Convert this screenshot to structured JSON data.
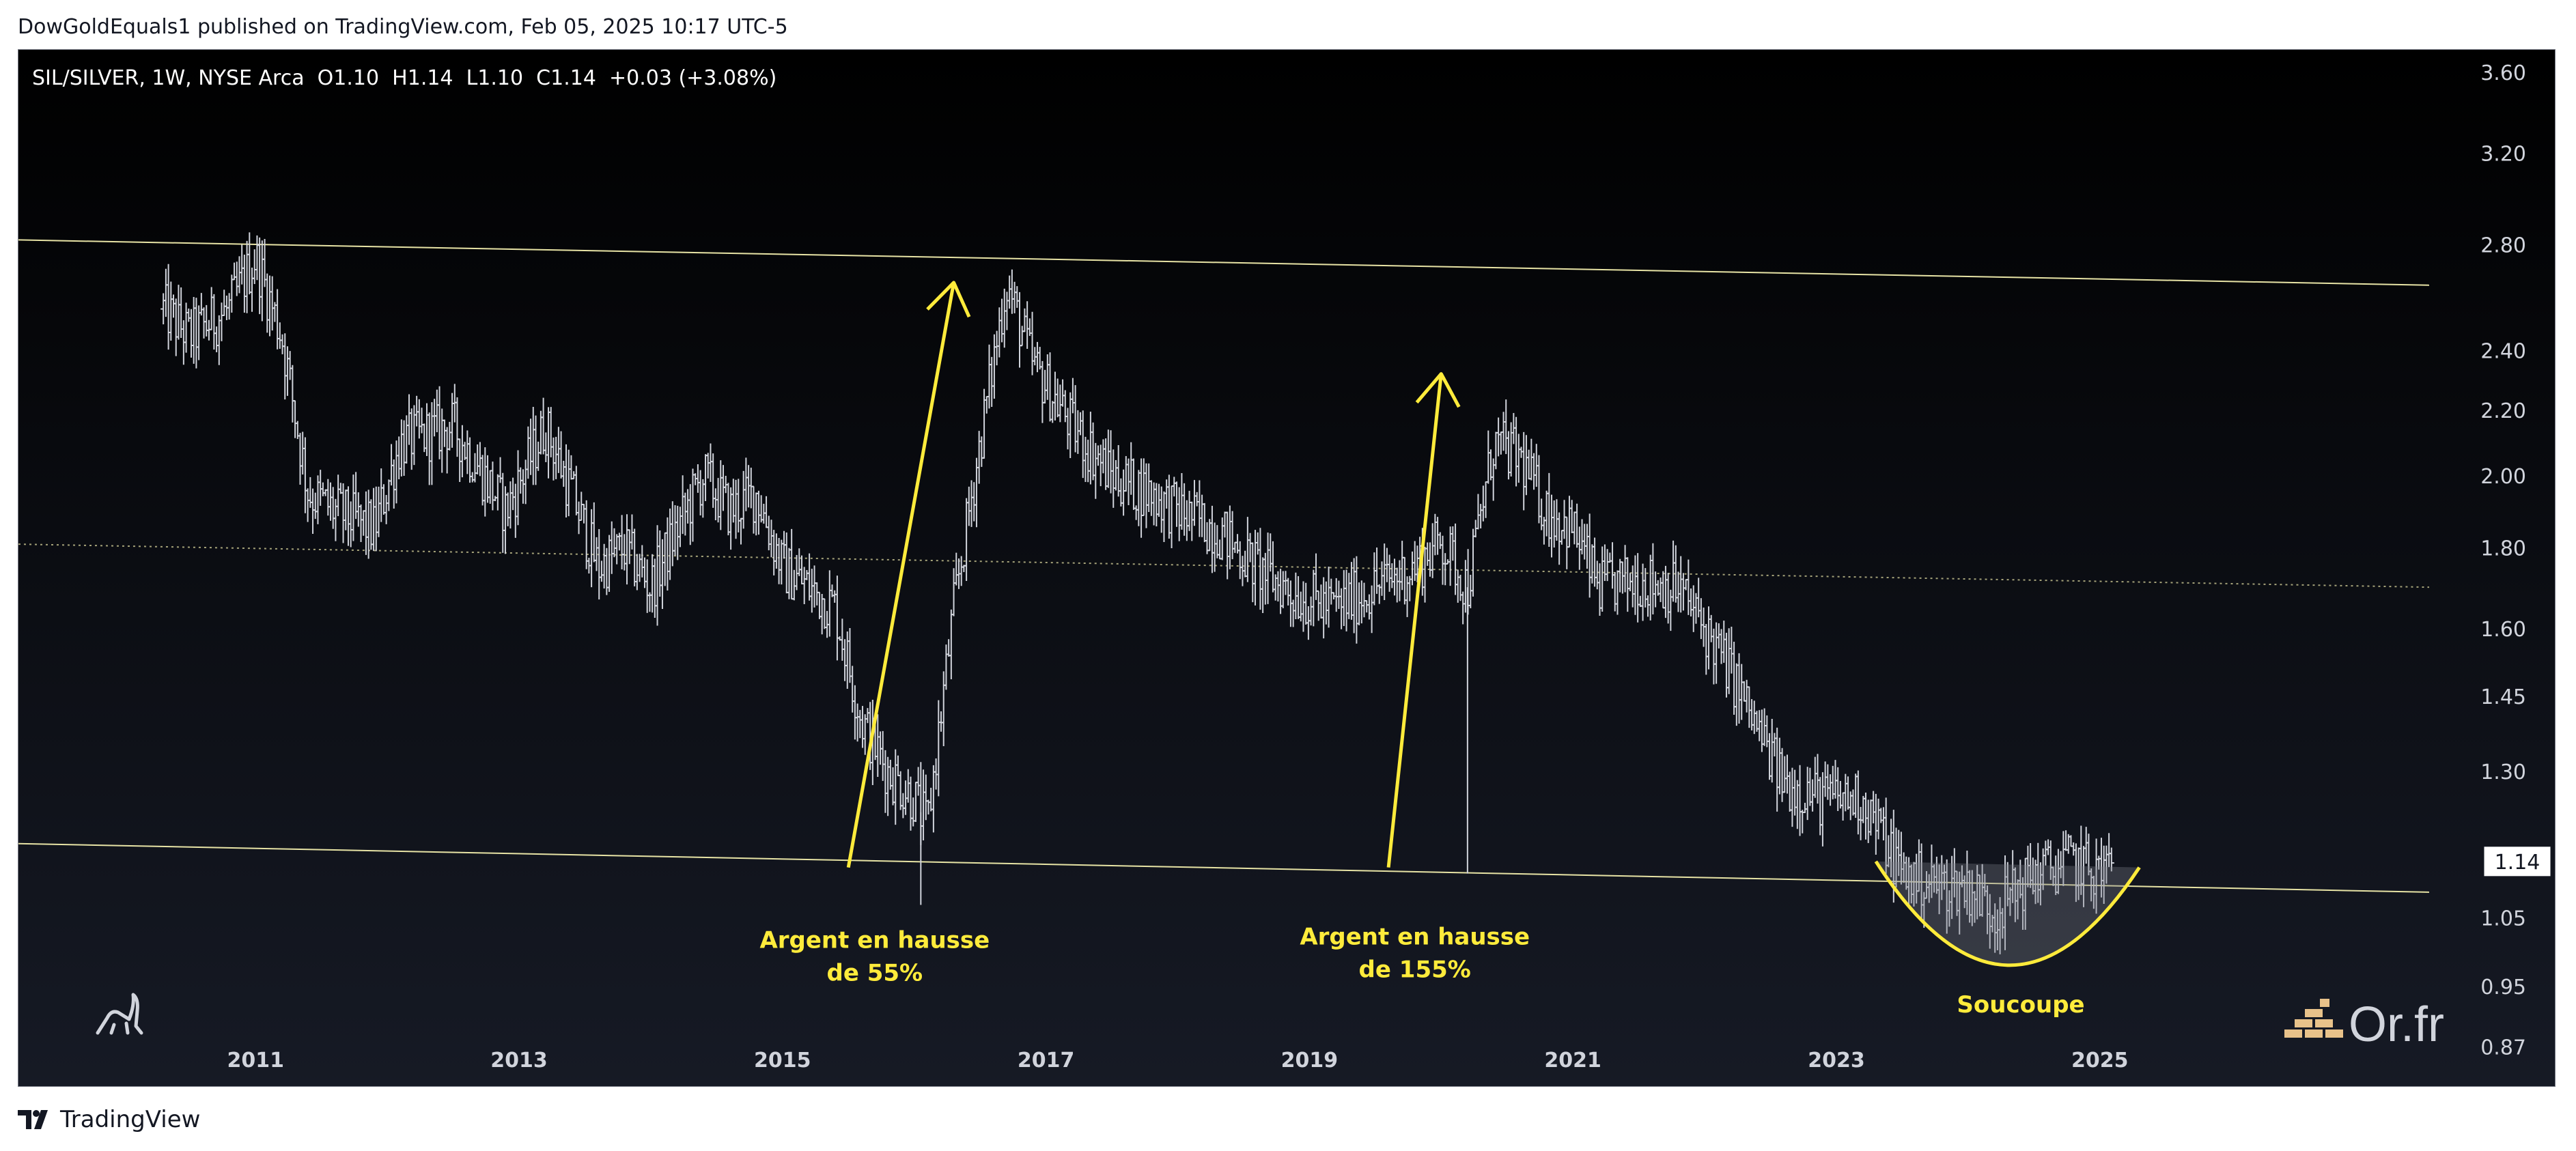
{
  "header": {
    "published_text": "DowGoldEquals1 published on TradingView.com, Feb 05, 2025 10:17 UTC-5"
  },
  "symbol_bar": {
    "text": "SIL/SILVER, 1W, NYSE Arca  O1.10  H1.14  L1.10  C1.14  +0.03 (+3.08%)"
  },
  "footer": {
    "brand": "TradingView"
  },
  "colors": {
    "bg_top": "#000000",
    "bg_bottom": "#161a25",
    "bars": "#d1d4dc",
    "trendline": "#e7e3a5",
    "annotation": "#ffeb3b",
    "axis_text": "#d1d4dc"
  },
  "chart_data": {
    "type": "bar",
    "title": "SIL/SILVER, 1W, NYSE Arca",
    "scale": "log",
    "ylim": [
      0.82,
      3.72
    ],
    "xlim": [
      2009.2,
      2027.5
    ],
    "x_ticks": [
      {
        "x": 2011,
        "label": "2011"
      },
      {
        "x": 2013,
        "label": "2013"
      },
      {
        "x": 2015,
        "label": "2015"
      },
      {
        "x": 2017,
        "label": "2017"
      },
      {
        "x": 2019,
        "label": "2019"
      },
      {
        "x": 2021,
        "label": "2021"
      },
      {
        "x": 2023,
        "label": "2023"
      },
      {
        "x": 2025,
        "label": "2025"
      }
    ],
    "y_ticks": [
      0.87,
      0.95,
      1.05,
      1.3,
      1.45,
      1.6,
      1.8,
      2.0,
      2.2,
      2.4,
      2.8,
      3.2,
      3.6
    ],
    "last_price": {
      "value": 1.14,
      "label": "1.14"
    },
    "ohlc_last": {
      "open": 1.1,
      "high": 1.14,
      "low": 1.1,
      "close": 1.14,
      "change": 0.03,
      "change_pct": 3.08
    },
    "price_path": [
      [
        2010.3,
        2.55
      ],
      [
        2010.5,
        2.45
      ],
      [
        2010.8,
        2.55
      ],
      [
        2011.0,
        2.75
      ],
      [
        2011.2,
        2.45
      ],
      [
        2011.4,
        1.95
      ],
      [
        2011.6,
        1.9
      ],
      [
        2011.9,
        1.85
      ],
      [
        2012.1,
        2.1
      ],
      [
        2012.5,
        2.15
      ],
      [
        2012.9,
        1.9
      ],
      [
        2013.2,
        2.15
      ],
      [
        2013.4,
        1.95
      ],
      [
        2013.6,
        1.75
      ],
      [
        2013.8,
        1.8
      ],
      [
        2014.0,
        1.7
      ],
      [
        2014.2,
        1.85
      ],
      [
        2014.4,
        2.0
      ],
      [
        2014.6,
        1.9
      ],
      [
        2014.8,
        1.95
      ],
      [
        2015.0,
        1.75
      ],
      [
        2015.2,
        1.7
      ],
      [
        2015.4,
        1.65
      ],
      [
        2015.6,
        1.4
      ],
      [
        2015.8,
        1.3
      ],
      [
        2016.0,
        1.25
      ],
      [
        2016.1,
        1.2
      ],
      [
        2016.3,
        1.65
      ],
      [
        2016.5,
        2.1
      ],
      [
        2016.7,
        2.65
      ],
      [
        2016.9,
        2.35
      ],
      [
        2017.2,
        2.15
      ],
      [
        2017.5,
        2.0
      ],
      [
        2017.8,
        1.95
      ],
      [
        2018.0,
        1.9
      ],
      [
        2018.3,
        1.85
      ],
      [
        2018.6,
        1.75
      ],
      [
        2018.9,
        1.68
      ],
      [
        2019.2,
        1.65
      ],
      [
        2019.5,
        1.7
      ],
      [
        2019.8,
        1.75
      ],
      [
        2020.0,
        1.82
      ],
      [
        2020.2,
        1.7
      ],
      [
        2020.4,
        2.1
      ],
      [
        2020.6,
        2.05
      ],
      [
        2020.8,
        1.9
      ],
      [
        2021.0,
        1.85
      ],
      [
        2021.2,
        1.7
      ],
      [
        2021.5,
        1.72
      ],
      [
        2021.8,
        1.7
      ],
      [
        2022.0,
        1.6
      ],
      [
        2022.2,
        1.5
      ],
      [
        2022.4,
        1.38
      ],
      [
        2022.6,
        1.28
      ],
      [
        2022.9,
        1.25
      ],
      [
        2023.2,
        1.25
      ],
      [
        2023.5,
        1.12
      ],
      [
        2023.8,
        1.1
      ],
      [
        2024.0,
        1.1
      ],
      [
        2024.2,
        1.06
      ],
      [
        2024.5,
        1.12
      ],
      [
        2024.8,
        1.14
      ],
      [
        2025.0,
        1.12
      ],
      [
        2025.1,
        1.14
      ]
    ],
    "spikes": [
      {
        "x": 2016.05,
        "low": 1.07
      },
      {
        "x": 2020.2,
        "low": 1.12
      }
    ],
    "trendlines": [
      {
        "points": [
          [
            2009.2,
            2.82
          ],
          [
            2027.5,
            2.64
          ]
        ]
      },
      {
        "points": [
          [
            2009.2,
            1.81
          ],
          [
            2027.5,
            1.7
          ],
          "dotted"
        ]
      },
      {
        "points": [
          [
            2009.2,
            1.17
          ],
          [
            2027.5,
            1.09
          ]
        ]
      }
    ],
    "annotations": [
      {
        "lines": [
          "Argent en hausse",
          "de 55%"
        ],
        "x": 2015.7,
        "y": 1.005
      },
      {
        "lines": [
          "Argent en hausse",
          "de 155%"
        ],
        "x": 2019.8,
        "y": 1.01
      },
      {
        "lines": [
          "Soucoupe"
        ],
        "x": 2024.4,
        "y": 0.915
      }
    ],
    "arrows": [
      {
        "from": [
          2015.5,
          1.13
        ],
        "to": [
          2016.3,
          2.65
        ]
      },
      {
        "from": [
          2019.6,
          1.13
        ],
        "to": [
          2020.0,
          2.32
        ]
      }
    ],
    "saucer": {
      "from": [
        2023.3,
        1.14
      ],
      "bottom": [
        2024.3,
        0.98
      ],
      "to": [
        2025.3,
        1.13
      ]
    }
  },
  "watermark": {
    "text": "Or.fr"
  }
}
